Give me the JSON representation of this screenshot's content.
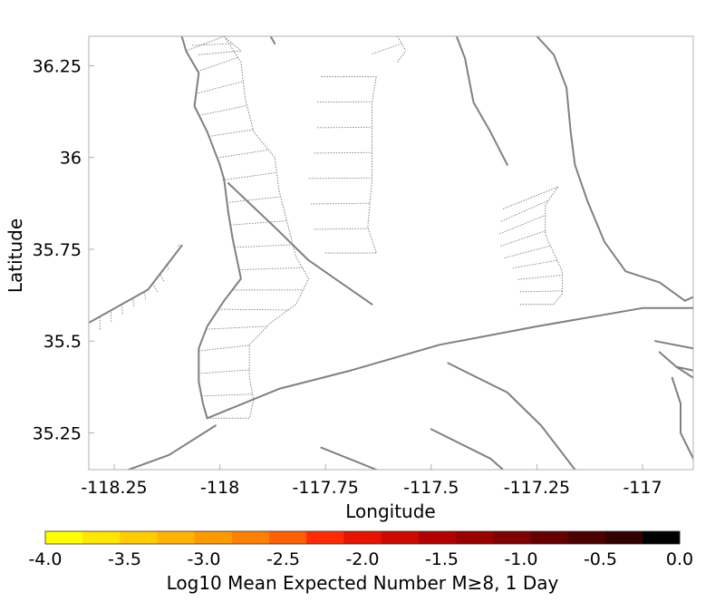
{
  "map": {
    "xlabel": "Longitude",
    "ylabel": "Latitude",
    "x_ticks": [
      {
        "value": -118.25,
        "label": "-118.25"
      },
      {
        "value": -118.0,
        "label": "-118"
      },
      {
        "value": -117.75,
        "label": "-117.75"
      },
      {
        "value": -117.5,
        "label": "-117.5"
      },
      {
        "value": -117.25,
        "label": "-117.25"
      },
      {
        "value": -117.0,
        "label": "-117"
      }
    ],
    "y_ticks": [
      {
        "value": 36.25,
        "label": "36.25"
      },
      {
        "value": 36.0,
        "label": "36"
      },
      {
        "value": 35.75,
        "label": "35.75"
      },
      {
        "value": 35.5,
        "label": "35.5"
      },
      {
        "value": 35.25,
        "label": "35.25"
      }
    ],
    "xlim": [
      -118.31,
      -116.88
    ],
    "ylim": [
      35.15,
      36.33
    ],
    "fault_color": "#808080",
    "faults": [
      [
        [
          -118.09,
          36.33
        ],
        [
          -118.08,
          36.29
        ],
        [
          -118.05,
          36.23
        ],
        [
          -118.06,
          36.14
        ],
        [
          -118.03,
          36.07
        ],
        [
          -118.0,
          35.98
        ],
        [
          -117.99,
          35.94
        ],
        [
          -117.98,
          35.85
        ],
        [
          -117.97,
          35.78
        ],
        [
          -117.95,
          35.67
        ],
        [
          -117.99,
          35.61
        ],
        [
          -118.03,
          35.54
        ],
        [
          -118.05,
          35.48
        ],
        [
          -118.05,
          35.39
        ],
        [
          -118.04,
          35.33
        ],
        [
          -118.03,
          35.29
        ]
      ],
      [
        [
          -118.03,
          35.29
        ],
        [
          -117.86,
          35.37
        ],
        [
          -117.69,
          35.42
        ],
        [
          -117.48,
          35.49
        ],
        [
          -117.25,
          35.54
        ],
        [
          -117.0,
          35.59
        ],
        [
          -116.88,
          35.59
        ]
      ],
      [
        [
          -117.98,
          35.93
        ],
        [
          -117.87,
          35.81
        ],
        [
          -117.79,
          35.72
        ],
        [
          -117.64,
          35.6
        ]
      ],
      [
        [
          -117.44,
          36.33
        ],
        [
          -117.42,
          36.27
        ],
        [
          -117.4,
          36.15
        ],
        [
          -117.36,
          36.07
        ],
        [
          -117.32,
          35.98
        ]
      ],
      [
        [
          -117.25,
          36.33
        ],
        [
          -117.21,
          36.28
        ],
        [
          -117.18,
          36.19
        ],
        [
          -117.17,
          36.07
        ],
        [
          -117.16,
          35.98
        ],
        [
          -117.13,
          35.88
        ],
        [
          -117.09,
          35.77
        ],
        [
          -117.04,
          35.69
        ],
        [
          -116.96,
          35.66
        ],
        [
          -116.9,
          35.61
        ]
      ],
      [
        [
          -116.9,
          35.61
        ],
        [
          -116.88,
          35.62
        ]
      ],
      [
        [
          -118.31,
          35.55
        ],
        [
          -118.17,
          35.64
        ],
        [
          -118.09,
          35.76
        ]
      ],
      [
        [
          -118.01,
          35.27
        ],
        [
          -118.12,
          35.19
        ],
        [
          -118.24,
          35.14
        ]
      ],
      [
        [
          -116.97,
          35.5
        ],
        [
          -116.88,
          35.48
        ]
      ],
      [
        [
          -116.96,
          35.47
        ],
        [
          -116.92,
          35.43
        ],
        [
          -116.88,
          35.4
        ]
      ],
      [
        [
          -116.92,
          35.43
        ],
        [
          -116.88,
          35.42
        ]
      ],
      [
        [
          -116.93,
          35.4
        ],
        [
          -116.91,
          35.33
        ],
        [
          -116.91,
          35.25
        ],
        [
          -116.88,
          35.18
        ]
      ],
      [
        [
          -117.46,
          35.44
        ],
        [
          -117.32,
          35.36
        ],
        [
          -117.24,
          35.27
        ],
        [
          -117.16,
          35.15
        ]
      ],
      [
        [
          -117.5,
          35.26
        ],
        [
          -117.36,
          35.18
        ],
        [
          -117.33,
          35.15
        ]
      ],
      [
        [
          -117.76,
          35.21
        ],
        [
          -117.63,
          35.15
        ]
      ],
      [
        [
          -117.88,
          36.33
        ],
        [
          -117.87,
          36.31
        ]
      ]
    ],
    "fault_planes": [
      {
        "trace": [
          [
            -118.08,
            36.29
          ],
          [
            -118.05,
            36.23
          ],
          [
            -118.06,
            36.14
          ],
          [
            -118.03,
            36.07
          ],
          [
            -118.0,
            35.98
          ],
          [
            -117.98,
            35.85
          ],
          [
            -117.97,
            35.78
          ],
          [
            -117.95,
            35.67
          ],
          [
            -117.99,
            35.61
          ],
          [
            -118.03,
            35.54
          ],
          [
            -118.05,
            35.48
          ],
          [
            -118.05,
            35.39
          ],
          [
            -118.04,
            35.33
          ],
          [
            -118.03,
            35.29
          ]
        ],
        "lower": [
          [
            -117.99,
            36.33
          ],
          [
            -117.95,
            36.26
          ],
          [
            -117.94,
            36.16
          ],
          [
            -117.92,
            36.07
          ],
          [
            -117.87,
            36.0
          ],
          [
            -117.86,
            35.91
          ],
          [
            -117.84,
            35.82
          ],
          [
            -117.82,
            35.73
          ],
          [
            -117.79,
            35.67
          ],
          [
            -117.82,
            35.6
          ],
          [
            -117.88,
            35.55
          ],
          [
            -117.93,
            35.49
          ],
          [
            -117.93,
            35.4
          ],
          [
            -117.92,
            35.34
          ],
          [
            -117.93,
            35.29
          ]
        ],
        "ticks": 17
      },
      {
        "trace": [
          [
            -117.76,
            36.22
          ],
          [
            -117.77,
            36.15
          ],
          [
            -117.77,
            36.05
          ],
          [
            -117.79,
            35.94
          ],
          [
            -117.78,
            35.81
          ],
          [
            -117.75,
            35.74
          ]
        ],
        "lower": [
          [
            -117.63,
            36.22
          ],
          [
            -117.64,
            36.15
          ],
          [
            -117.64,
            36.05
          ],
          [
            -117.64,
            35.94
          ],
          [
            -117.65,
            35.81
          ],
          [
            -117.63,
            35.74
          ]
        ],
        "ticks": 7
      },
      {
        "trace": [
          [
            -117.33,
            35.86
          ],
          [
            -117.34,
            35.78
          ],
          [
            -117.33,
            35.73
          ],
          [
            -117.3,
            35.69
          ],
          [
            -117.29,
            35.65
          ],
          [
            -117.29,
            35.6
          ]
        ],
        "lower": [
          [
            -117.2,
            35.92
          ],
          [
            -117.23,
            35.87
          ],
          [
            -117.23,
            35.79
          ],
          [
            -117.21,
            35.74
          ],
          [
            -117.19,
            35.69
          ],
          [
            -117.19,
            35.63
          ],
          [
            -117.21,
            35.6
          ]
        ],
        "ticks": 8
      },
      {
        "trace": [
          [
            -118.31,
            35.51
          ],
          [
            -118.21,
            35.59
          ],
          [
            -118.14,
            35.64
          ],
          [
            -118.1,
            35.76
          ]
        ],
        "lower": [
          [
            -118.31,
            35.55
          ],
          [
            -118.17,
            35.64
          ],
          [
            -118.09,
            35.76
          ]
        ],
        "ticks": 10
      },
      {
        "trace": [
          [
            -117.67,
            36.33
          ],
          [
            -117.66,
            36.29
          ],
          [
            -117.58,
            36.26
          ]
        ],
        "lower": [
          [
            -117.58,
            36.33
          ],
          [
            -117.56,
            36.29
          ]
        ],
        "ticks": 2
      },
      {
        "trace": [
          [
            -118.08,
            36.33
          ],
          [
            -118.05,
            36.28
          ]
        ],
        "lower": [
          [
            -117.99,
            36.33
          ],
          [
            -117.95,
            36.29
          ]
        ],
        "ticks": 2
      }
    ]
  },
  "colorbar": {
    "title": "Log10 Mean Expected Number M≥8, 1 Day",
    "range": [
      -4.0,
      0.0
    ],
    "colors": [
      "#ffff00",
      "#ffe600",
      "#ffcc00",
      "#ffb300",
      "#ff9900",
      "#ff8000",
      "#ff6000",
      "#ff2a00",
      "#e61400",
      "#cc0a00",
      "#b30000",
      "#990000",
      "#800000",
      "#660000",
      "#4d0000",
      "#330000",
      "#000000"
    ],
    "ticks": [
      {
        "value": -4.0,
        "label": "-4.0"
      },
      {
        "value": -3.5,
        "label": "-3.5"
      },
      {
        "value": -3.0,
        "label": "-3.0"
      },
      {
        "value": -2.5,
        "label": "-2.5"
      },
      {
        "value": -2.0,
        "label": "-2.0"
      },
      {
        "value": -1.5,
        "label": "-1.5"
      },
      {
        "value": -1.0,
        "label": "-1.0"
      },
      {
        "value": -0.5,
        "label": "-0.5"
      },
      {
        "value": 0.0,
        "label": "0.0"
      }
    ]
  }
}
